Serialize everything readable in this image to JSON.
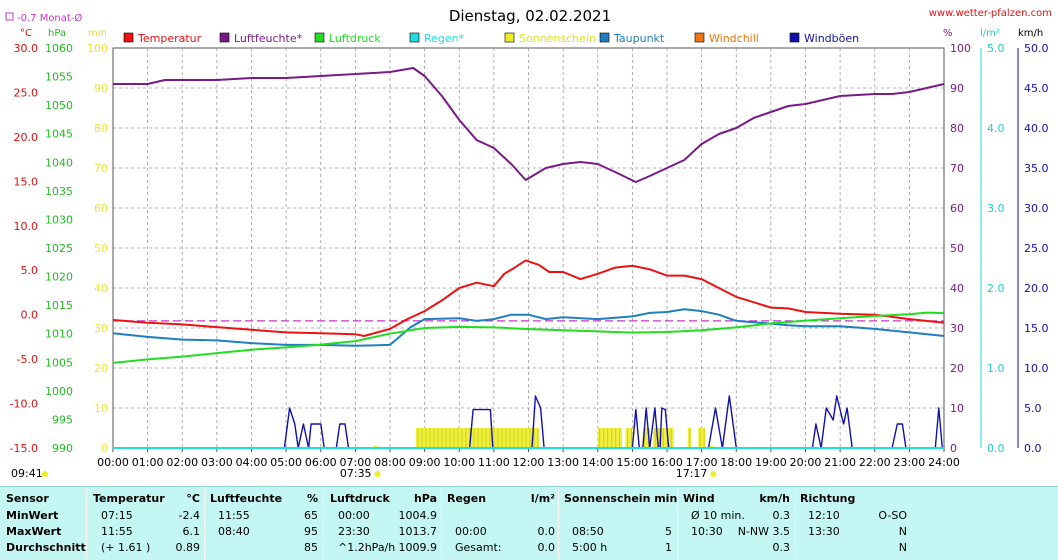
{
  "header": {
    "title": "Dienstag, 02.02.2021",
    "website": "www.wetter-pfalzen.com",
    "month_avg_label": "-0.7 Monat-Ø",
    "unit_celsius": "°C",
    "unit_hpa": "hPa",
    "unit_min": "min",
    "unit_percent": "%",
    "unit_lm2": "l/m²",
    "unit_kmh": "km/h",
    "sunrise": "07:35",
    "sunset": "17:17",
    "daylength": "09:41"
  },
  "colors": {
    "temperature": "#ee1111",
    "humidity": "#7a1a88",
    "pressure": "#22dd22",
    "rain": "#22dddd",
    "sunshine": "#eeee22",
    "dewpoint": "#1f7fbf",
    "windchill": "#ee7711",
    "gusts": "#1111aa",
    "grid": "#999999",
    "month_avg": "#cc33cc",
    "summary_bg": "#c4f7f4"
  },
  "legend": [
    {
      "label": "Temperatur",
      "color": "#ee1111"
    },
    {
      "label": "Luftfeuchte*",
      "color": "#7a1a88"
    },
    {
      "label": "Luftdruck",
      "color": "#22dd22"
    },
    {
      "label": "Regen*",
      "color": "#22dddd"
    },
    {
      "label": "Sonnenschein",
      "color": "#eeee22"
    },
    {
      "label": "Taupunkt",
      "color": "#1f7fbf"
    },
    {
      "label": "Windchill",
      "color": "#ee7711"
    },
    {
      "label": "Windböen",
      "color": "#1111aa"
    }
  ],
  "chart_data": {
    "type": "line",
    "title": "Dienstag, 02.02.2021",
    "x_ticks": [
      "00:00",
      "01:00",
      "02:00",
      "03:00",
      "04:00",
      "05:00",
      "06:00",
      "07:00",
      "08:00",
      "09:00",
      "10:00",
      "11:00",
      "12:00",
      "13:00",
      "14:00",
      "15:00",
      "16:00",
      "17:00",
      "18:00",
      "19:00",
      "20:00",
      "21:00",
      "22:00",
      "23:00",
      "24:00"
    ],
    "axes": {
      "temperature_c": {
        "ticks": [
          "30.0",
          "25.0",
          "20.0",
          "15.0",
          "10.0",
          "5.0",
          "0.0",
          "-5.0",
          "-10.0",
          "-15.0"
        ],
        "range": [
          -15,
          30
        ]
      },
      "pressure_hpa": {
        "ticks": [
          "1060",
          "1055",
          "1050",
          "1045",
          "1040",
          "1035",
          "1030",
          "1025",
          "1020",
          "1015",
          "1010",
          "1005",
          "1000",
          "995",
          "990"
        ],
        "range": [
          990,
          1060
        ]
      },
      "sunshine_min": {
        "ticks": [
          "100",
          "90",
          "80",
          "70",
          "60",
          "50",
          "40",
          "30",
          "20",
          "10",
          "0"
        ],
        "range": [
          0,
          100
        ]
      },
      "humidity_pct": {
        "ticks": [
          "100",
          "90",
          "80",
          "70",
          "60",
          "50",
          "40",
          "30",
          "20",
          "10",
          "0"
        ],
        "range": [
          0,
          100
        ]
      },
      "rain_lm2": {
        "ticks": [
          "5.0",
          "4.0",
          "3.0",
          "2.0",
          "1.0",
          "0.0"
        ],
        "range": [
          0,
          5
        ]
      },
      "wind_kmh": {
        "ticks": [
          "50.0",
          "45.0",
          "40.0",
          "35.0",
          "30.0",
          "25.0",
          "20.0",
          "15.0",
          "10.0",
          "5.0",
          "0.0"
        ],
        "range": [
          0,
          50
        ]
      }
    },
    "month_avg_temp": -0.7,
    "series": [
      {
        "name": "Temperatur",
        "axis": "temperature_c",
        "points": [
          [
            0,
            -0.6
          ],
          [
            1,
            -0.9
          ],
          [
            2,
            -1.1
          ],
          [
            3,
            -1.4
          ],
          [
            4,
            -1.7
          ],
          [
            5,
            -2.0
          ],
          [
            6,
            -2.1
          ],
          [
            7,
            -2.2
          ],
          [
            7.25,
            -2.4
          ],
          [
            8,
            -1.6
          ],
          [
            8.5,
            -0.5
          ],
          [
            9,
            0.4
          ],
          [
            9.5,
            1.6
          ],
          [
            10,
            3.0
          ],
          [
            10.5,
            3.6
          ],
          [
            11,
            3.2
          ],
          [
            11.3,
            4.6
          ],
          [
            11.6,
            5.3
          ],
          [
            11.92,
            6.1
          ],
          [
            12.3,
            5.6
          ],
          [
            12.6,
            4.8
          ],
          [
            13,
            4.8
          ],
          [
            13.5,
            4.0
          ],
          [
            14,
            4.6
          ],
          [
            14.5,
            5.3
          ],
          [
            15,
            5.5
          ],
          [
            15.5,
            5.1
          ],
          [
            16,
            4.4
          ],
          [
            16.5,
            4.4
          ],
          [
            17,
            4.0
          ],
          [
            17.5,
            3.0
          ],
          [
            18,
            2.0
          ],
          [
            18.5,
            1.4
          ],
          [
            19,
            0.8
          ],
          [
            19.5,
            0.7
          ],
          [
            20,
            0.3
          ],
          [
            21,
            0.1
          ],
          [
            22,
            0.0
          ],
          [
            23,
            -0.5
          ],
          [
            24,
            -0.9
          ]
        ]
      },
      {
        "name": "Taupunkt",
        "axis": "temperature_c",
        "points": [
          [
            0,
            -2.1
          ],
          [
            1,
            -2.5
          ],
          [
            2,
            -2.8
          ],
          [
            3,
            -2.9
          ],
          [
            4,
            -3.2
          ],
          [
            5,
            -3.4
          ],
          [
            6,
            -3.4
          ],
          [
            7,
            -3.5
          ],
          [
            8,
            -3.4
          ],
          [
            8.6,
            -1.4
          ],
          [
            9,
            -0.5
          ],
          [
            10,
            -0.4
          ],
          [
            10.5,
            -0.7
          ],
          [
            11,
            -0.5
          ],
          [
            11.5,
            0.0
          ],
          [
            12,
            0.0
          ],
          [
            12.5,
            -0.5
          ],
          [
            13,
            -0.3
          ],
          [
            14,
            -0.5
          ],
          [
            15,
            -0.2
          ],
          [
            15.5,
            0.2
          ],
          [
            16,
            0.3
          ],
          [
            16.5,
            0.6
          ],
          [
            17,
            0.4
          ],
          [
            17.5,
            0.0
          ],
          [
            18,
            -0.7
          ],
          [
            19,
            -1.0
          ],
          [
            19.5,
            -1.2
          ],
          [
            20,
            -1.3
          ],
          [
            21,
            -1.3
          ],
          [
            22,
            -1.6
          ],
          [
            23,
            -2.0
          ],
          [
            24,
            -2.4
          ]
        ]
      },
      {
        "name": "Luftfeuchte*",
        "axis": "humidity_pct",
        "points": [
          [
            0,
            91
          ],
          [
            1,
            91
          ],
          [
            1.5,
            92
          ],
          [
            2,
            92
          ],
          [
            3,
            92
          ],
          [
            4,
            92.5
          ],
          [
            5,
            92.5
          ],
          [
            6,
            93
          ],
          [
            7,
            93.5
          ],
          [
            8,
            94
          ],
          [
            8.67,
            95
          ],
          [
            9,
            93
          ],
          [
            9.5,
            88
          ],
          [
            10,
            82
          ],
          [
            10.5,
            77
          ],
          [
            11,
            75
          ],
          [
            11.5,
            71
          ],
          [
            11.92,
            67
          ],
          [
            12.5,
            70
          ],
          [
            13,
            71
          ],
          [
            13.5,
            71.5
          ],
          [
            14,
            71
          ],
          [
            14.5,
            69
          ],
          [
            15.1,
            66.5
          ],
          [
            15.5,
            68
          ],
          [
            16,
            70
          ],
          [
            16.5,
            72
          ],
          [
            17,
            76
          ],
          [
            17.5,
            78.5
          ],
          [
            18,
            80
          ],
          [
            18.5,
            82.5
          ],
          [
            19,
            84
          ],
          [
            19.5,
            85.5
          ],
          [
            20,
            86
          ],
          [
            20.5,
            87
          ],
          [
            21,
            88
          ],
          [
            22,
            88.5
          ],
          [
            22.5,
            88.5
          ],
          [
            23,
            89
          ],
          [
            23.5,
            90
          ],
          [
            24,
            91
          ]
        ]
      },
      {
        "name": "Luftdruck",
        "axis": "pressure_hpa",
        "points": [
          [
            0,
            1004.9
          ],
          [
            1,
            1005.5
          ],
          [
            2,
            1006
          ],
          [
            3,
            1006.6
          ],
          [
            4,
            1007.2
          ],
          [
            5,
            1007.6
          ],
          [
            6,
            1008.1
          ],
          [
            7,
            1008.7
          ],
          [
            8,
            1010.0
          ],
          [
            9,
            1011.0
          ],
          [
            10,
            1011.2
          ],
          [
            11,
            1011.1
          ],
          [
            12,
            1010.8
          ],
          [
            13,
            1010.6
          ],
          [
            14,
            1010.4
          ],
          [
            15,
            1010.2
          ],
          [
            16,
            1010.3
          ],
          [
            17,
            1010.6
          ],
          [
            18,
            1011.1
          ],
          [
            19,
            1011.8
          ],
          [
            20,
            1012.3
          ],
          [
            21,
            1012.7
          ],
          [
            22,
            1013.1
          ],
          [
            23,
            1013.4
          ],
          [
            23.5,
            1013.7
          ],
          [
            24,
            1013.6
          ]
        ]
      },
      {
        "name": "Windböen",
        "axis": "wind_kmh",
        "points": [
          [
            0,
            0
          ],
          [
            4.95,
            0
          ],
          [
            5.1,
            5
          ],
          [
            5.25,
            3
          ],
          [
            5.35,
            0
          ],
          [
            5.5,
            3
          ],
          [
            5.65,
            0
          ],
          [
            5.72,
            3
          ],
          [
            6.0,
            3
          ],
          [
            6.1,
            0
          ],
          [
            6.45,
            0
          ],
          [
            6.55,
            3
          ],
          [
            6.7,
            3
          ],
          [
            6.8,
            0
          ],
          [
            10.3,
            0
          ],
          [
            10.4,
            4.8
          ],
          [
            10.9,
            4.8
          ],
          [
            10.97,
            0
          ],
          [
            12.1,
            0
          ],
          [
            12.2,
            6.5
          ],
          [
            12.35,
            5
          ],
          [
            12.45,
            0
          ],
          [
            15.0,
            0
          ],
          [
            15.1,
            4.8
          ],
          [
            15.2,
            0
          ],
          [
            15.3,
            0
          ],
          [
            15.4,
            5
          ],
          [
            15.5,
            0
          ],
          [
            15.65,
            5
          ],
          [
            15.75,
            0
          ],
          [
            15.8,
            0
          ],
          [
            15.85,
            5
          ],
          [
            15.95,
            4.8
          ],
          [
            16.05,
            0
          ],
          [
            17.2,
            0
          ],
          [
            17.4,
            5
          ],
          [
            17.6,
            0
          ],
          [
            17.8,
            6.5
          ],
          [
            18.0,
            0
          ],
          [
            20.2,
            0
          ],
          [
            20.3,
            3
          ],
          [
            20.45,
            0
          ],
          [
            20.6,
            5
          ],
          [
            20.8,
            3.5
          ],
          [
            20.9,
            6.5
          ],
          [
            21.1,
            3
          ],
          [
            21.2,
            5
          ],
          [
            21.35,
            0
          ],
          [
            22.5,
            0
          ],
          [
            22.65,
            3
          ],
          [
            22.8,
            3
          ],
          [
            22.9,
            0
          ],
          [
            23.75,
            0
          ],
          [
            23.85,
            5
          ],
          [
            23.95,
            0
          ],
          [
            24,
            0
          ]
        ]
      },
      {
        "name": "Regen*",
        "axis": "rain_lm2",
        "points": [
          [
            0,
            0
          ],
          [
            24,
            0
          ]
        ]
      }
    ],
    "sunshine_intervals": [
      [
        8.75,
        12.3
      ],
      [
        14.0,
        14.7
      ],
      [
        14.8,
        15.0
      ],
      [
        15.3,
        15.5
      ],
      [
        15.6,
        16.2
      ],
      [
        16.6,
        16.7
      ],
      [
        16.9,
        17.1
      ]
    ],
    "sunshine_level_min": 5
  },
  "summary": {
    "columns": [
      {
        "title": "Sensor",
        "rows": [
          "MinWert",
          "MaxWert",
          "Durchschnitt"
        ]
      },
      {
        "title": "Temperatur",
        "unit": "°C",
        "rows": [
          [
            "07:15",
            "-2.4"
          ],
          [
            "11:55",
            "6.1"
          ],
          [
            "(+ 1.61 )",
            "0.89"
          ]
        ]
      },
      {
        "title": "Luftfeuchte",
        "unit": "%",
        "rows": [
          [
            "11:55",
            "65"
          ],
          [
            "08:40",
            "95"
          ],
          [
            "",
            "85"
          ]
        ]
      },
      {
        "title": "Luftdruck",
        "unit": "hPa",
        "rows": [
          [
            "00:00",
            "1004.9"
          ],
          [
            "23:30",
            "1013.7"
          ],
          [
            "^1.2hPa/h",
            "1009.9"
          ]
        ]
      },
      {
        "title": "Regen",
        "unit": "l/m²",
        "rows": [
          [
            "",
            ""
          ],
          [
            "00:00",
            "0.0"
          ],
          [
            "Gesamt:",
            "0.0"
          ]
        ]
      },
      {
        "title": "Sonnenschein min",
        "unit": "",
        "rows": [
          [
            "",
            ""
          ],
          [
            "08:50",
            "5"
          ],
          [
            "5:00 h",
            "1"
          ]
        ]
      },
      {
        "title": "Wind",
        "unit": "km/h",
        "rows": [
          [
            "Ø 10 min.",
            "0.3"
          ],
          [
            "10:30",
            "N-NW 3.5"
          ],
          [
            "",
            "0.3"
          ]
        ]
      },
      {
        "title": "Richtung",
        "unit": "",
        "rows": [
          [
            "12:10",
            "O-SO"
          ],
          [
            "13:30",
            "N"
          ],
          [
            "",
            "N"
          ]
        ]
      }
    ]
  }
}
